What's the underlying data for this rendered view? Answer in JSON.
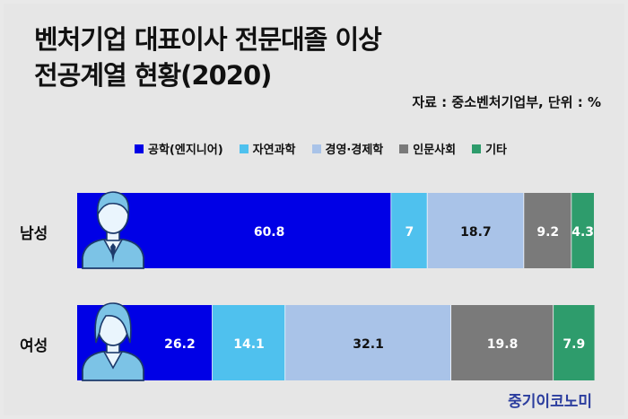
{
  "title_lines": [
    "벤처기업 대표이사 전문대졸 이상",
    "전공계열 현황(2020)"
  ],
  "source": "자료 : 중소벤처기업부, 단위 : %",
  "logo": "중기이코노미",
  "colors": {
    "공학": "#0000e6",
    "자연과학": "#4fc1ee",
    "경영경제학": "#a9c3e8",
    "인문사회": "#7a7a7a",
    "기타": "#2e9c6c"
  },
  "chart_data": {
    "type": "bar",
    "orientation": "horizontal",
    "stacked": true,
    "title": "벤처기업 대표이사 전문대졸 이상 전공계열 현황(2020)",
    "unit": "%",
    "categories": [
      "남성",
      "여성"
    ],
    "series": [
      {
        "name": "공학(엔지니어)",
        "color": "#0000e6",
        "values": [
          60.8,
          26.2
        ],
        "labels": [
          "60.8",
          "26.2"
        ]
      },
      {
        "name": "자연과학",
        "color": "#4fc1ee",
        "values": [
          7,
          14.1
        ],
        "labels": [
          "7",
          "14.1"
        ]
      },
      {
        "name": "경영·경제학",
        "color": "#a9c3e8",
        "values": [
          18.7,
          32.1
        ],
        "labels": [
          "18.7",
          "32.1"
        ]
      },
      {
        "name": "인문사회",
        "color": "#7a7a7a",
        "values": [
          9.2,
          19.8
        ],
        "labels": [
          "9.2",
          "19.8"
        ]
      },
      {
        "name": "기타",
        "color": "#2e9c6c",
        "values": [
          4.3,
          7.9
        ],
        "labels": [
          "4.3",
          "7.9"
        ]
      }
    ],
    "icons": [
      "male-person-icon",
      "female-person-icon"
    ],
    "legend_position": "top",
    "grid": false
  }
}
